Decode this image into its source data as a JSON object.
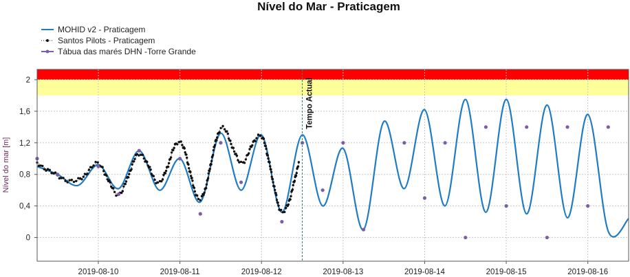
{
  "colors": {
    "model": "#1f7bc4",
    "observed": "#111111",
    "tide": "#7b5ea7",
    "danger": "#ff0000",
    "warning": "#ffff99",
    "gridline": "#c8c8c8",
    "now_line": "#2e8b57"
  },
  "chart_data": {
    "type": "line",
    "title": "Nível do Mar - Praticagem",
    "ylabel": "Nível do mar [m]",
    "xlabel": "",
    "ylim": [
      -0.3,
      2.13
    ],
    "xlim": [
      "2019-08-09 06:00",
      "2019-08-16 12:00"
    ],
    "yticks": [
      0,
      0.4,
      0.8,
      1.2,
      1.6,
      2
    ],
    "ytick_labels": [
      "0",
      "0,4",
      "0,8",
      "1,2",
      "1,6",
      "2"
    ],
    "xticks": [
      "2019-08-10",
      "2019-08-11",
      "2019-08-12",
      "2019-08-13",
      "2019-08-14",
      "2019-08-15",
      "2019-08-16"
    ],
    "grid": true,
    "legend_position": "top-left",
    "bands": [
      {
        "from": 2.0,
        "to": 2.13,
        "color": "#ff0000"
      },
      {
        "from": 1.8,
        "to": 2.0,
        "color": "#ffff99"
      }
    ],
    "now_marker": {
      "x": "2019-08-12 12:00",
      "label": "Tempo Actual"
    },
    "series": [
      {
        "name": "MOHID v2 - Praticagem",
        "style": "line",
        "x": [
          "2019-08-09 06:00",
          "2019-08-09 12:00",
          "2019-08-09 18:00",
          "2019-08-10 00:00",
          "2019-08-10 06:00",
          "2019-08-10 12:00",
          "2019-08-10 18:00",
          "2019-08-11 00:00",
          "2019-08-11 06:00",
          "2019-08-11 12:00",
          "2019-08-11 18:00",
          "2019-08-12 00:00",
          "2019-08-12 06:00",
          "2019-08-12 12:00",
          "2019-08-12 18:00",
          "2019-08-13 00:00",
          "2019-08-13 06:00",
          "2019-08-13 12:00",
          "2019-08-13 18:00",
          "2019-08-14 00:00",
          "2019-08-14 06:00",
          "2019-08-14 12:00",
          "2019-08-14 18:00",
          "2019-08-15 00:00",
          "2019-08-15 06:00",
          "2019-08-15 12:00",
          "2019-08-15 18:00",
          "2019-08-16 00:00",
          "2019-08-16 06:00",
          "2019-08-16 12:00"
        ],
        "y": [
          0.9,
          0.8,
          0.66,
          0.92,
          0.62,
          1.1,
          0.6,
          1.0,
          0.45,
          1.32,
          0.6,
          1.3,
          0.32,
          1.3,
          0.4,
          1.13,
          0.1,
          1.47,
          0.62,
          1.62,
          0.4,
          1.75,
          0.32,
          1.75,
          0.3,
          1.68,
          0.25,
          1.56,
          0.08,
          0.24
        ]
      },
      {
        "name": "Santos Pilots - Praticagem",
        "style": "dotted-markers",
        "x": [
          "2019-08-09 06:00",
          "2019-08-09 12:00",
          "2019-08-09 18:00",
          "2019-08-10 00:00",
          "2019-08-10 06:00",
          "2019-08-10 12:00",
          "2019-08-10 18:00",
          "2019-08-11 00:00",
          "2019-08-11 06:00",
          "2019-08-11 12:00",
          "2019-08-11 18:00",
          "2019-08-12 00:00",
          "2019-08-12 06:00",
          "2019-08-12 11:00"
        ],
        "y": [
          0.95,
          0.78,
          0.72,
          0.93,
          0.55,
          1.06,
          0.7,
          1.22,
          0.48,
          1.38,
          0.95,
          1.28,
          0.32,
          0.95
        ]
      },
      {
        "name": "Tábua das marés DHN -Torre Grande",
        "style": "markers",
        "x": [
          "2019-08-09 06:00",
          "2019-08-09 12:00",
          "2019-08-10 00:00",
          "2019-08-10 06:00",
          "2019-08-10 12:00",
          "2019-08-11 00:00",
          "2019-08-11 06:00",
          "2019-08-11 12:00",
          "2019-08-11 18:00",
          "2019-08-12 06:00",
          "2019-08-12 12:00",
          "2019-08-12 18:00",
          "2019-08-13 00:00",
          "2019-08-13 06:00",
          "2019-08-13 18:00",
          "2019-08-14 00:00",
          "2019-08-14 06:00",
          "2019-08-14 12:00",
          "2019-08-14 18:00",
          "2019-08-15 00:00",
          "2019-08-15 06:00",
          "2019-08-15 12:00",
          "2019-08-15 18:00",
          "2019-08-16 00:00",
          "2019-08-16 06:00"
        ],
        "y": [
          1.0,
          0.8,
          0.9,
          0.55,
          1.1,
          1.0,
          0.3,
          1.2,
          0.7,
          0.2,
          1.2,
          0.6,
          1.2,
          0.1,
          1.2,
          0.5,
          1.2,
          0.0,
          1.4,
          0.4,
          1.4,
          0.0,
          1.4,
          0.4,
          1.4
        ]
      }
    ]
  }
}
